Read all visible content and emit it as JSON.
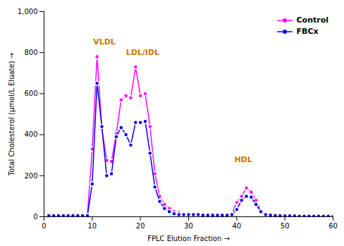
{
  "chart_data": {
    "type": "line",
    "x": [
      1,
      2,
      3,
      4,
      5,
      6,
      7,
      8,
      9,
      10,
      11,
      12,
      13,
      14,
      15,
      16,
      17,
      18,
      19,
      20,
      21,
      22,
      23,
      24,
      25,
      26,
      27,
      28,
      29,
      30,
      31,
      32,
      33,
      34,
      35,
      36,
      37,
      38,
      39,
      40,
      41,
      42,
      43,
      44,
      45,
      46,
      47,
      48,
      49,
      50,
      51,
      52,
      53,
      54,
      55,
      56,
      57,
      58,
      59,
      60
    ],
    "series": [
      {
        "name": "Control",
        "color": "#FF00FF",
        "values": [
          5,
          5,
          5,
          5,
          5,
          5,
          5,
          5,
          5,
          330,
          780,
          430,
          275,
          270,
          405,
          570,
          590,
          580,
          730,
          590,
          600,
          440,
          210,
          100,
          60,
          40,
          25,
          20,
          15,
          10,
          10,
          10,
          10,
          10,
          10,
          10,
          10,
          10,
          15,
          70,
          100,
          140,
          120,
          80,
          30,
          15,
          10,
          8,
          6,
          5,
          5,
          4,
          4,
          3,
          3,
          3,
          3,
          3,
          3,
          3
        ]
      },
      {
        "name": "FBCx",
        "color": "#0000EE",
        "values": [
          5,
          5,
          5,
          5,
          5,
          5,
          5,
          5,
          5,
          160,
          650,
          440,
          200,
          210,
          390,
          435,
          400,
          350,
          460,
          460,
          465,
          310,
          145,
          75,
          40,
          25,
          15,
          10,
          10,
          10,
          10,
          10,
          8,
          8,
          8,
          8,
          8,
          8,
          10,
          35,
          80,
          100,
          95,
          60,
          25,
          10,
          8,
          6,
          5,
          4,
          4,
          4,
          3,
          3,
          3,
          3,
          3,
          3,
          3,
          3
        ]
      }
    ],
    "xlabel": "FPLC Elution Fraction",
    "ylabel": "Total Cholesterol (μmol/L Eluate)",
    "xlim": [
      0,
      60
    ],
    "ylim": [
      0,
      1000
    ],
    "xticks": [
      0,
      10,
      20,
      30,
      40,
      50,
      60
    ],
    "yticks": [
      0,
      200,
      400,
      600,
      800,
      1000
    ],
    "annotations": [
      {
        "text": "VLDL",
        "x": 10.2,
        "y": 840,
        "color": "#CC7700"
      },
      {
        "text": "LDL/IDL",
        "x": 17.0,
        "y": 790,
        "color": "#CC7700"
      },
      {
        "text": "HDL",
        "x": 39.5,
        "y": 265,
        "color": "#CC7700"
      }
    ],
    "marker": "circle",
    "legend": "upper right",
    "grid": false
  }
}
